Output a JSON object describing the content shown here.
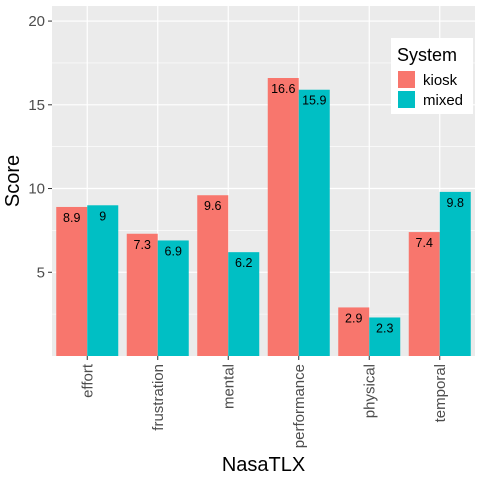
{
  "chart_data": {
    "type": "bar",
    "xlabel": "NasaTLX",
    "ylabel": "Score",
    "categories": [
      "effort",
      "frustration",
      "mental",
      "performance",
      "physical",
      "temporal"
    ],
    "series": [
      {
        "name": "kiosk",
        "color": "#F8766D",
        "values": [
          8.9,
          7.3,
          9.6,
          16.6,
          2.9,
          7.4
        ],
        "labels": [
          "8.9",
          "7.3",
          "9.6",
          "16.6",
          "2.9",
          "7.4"
        ]
      },
      {
        "name": "mixed",
        "color": "#00BFC4",
        "values": [
          9.0,
          6.9,
          6.2,
          15.9,
          2.3,
          9.8
        ],
        "labels": [
          "9",
          "6.9",
          "6.2",
          "15.9",
          "2.3",
          "9.8"
        ]
      }
    ],
    "yticks": [
      5,
      10,
      15,
      20
    ],
    "ylim": [
      0,
      20.9
    ],
    "grid": true,
    "legend": {
      "title": "System",
      "position": "top-right"
    },
    "colors": {
      "panel": "#EBEBEB",
      "gridline": "#FFFFFF"
    }
  }
}
